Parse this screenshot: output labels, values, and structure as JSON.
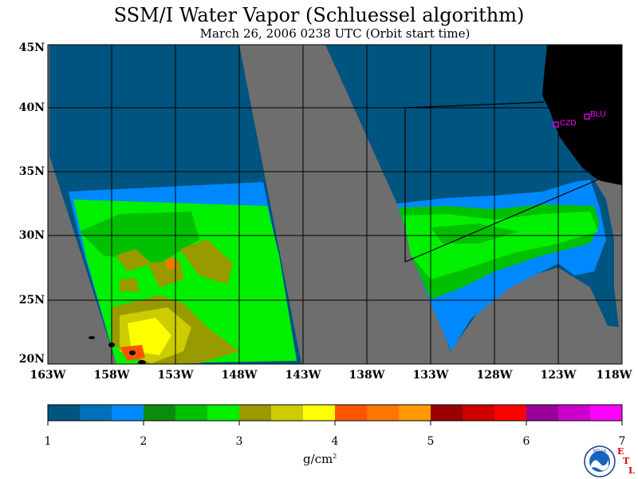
{
  "title": "SSM/I Water Vapor (Schluessel algorithm)",
  "subtitle": "March 26, 2006   0238 UTC  (Orbit start time)",
  "map": {
    "lat_labels": [
      "45N",
      "40N",
      "35N",
      "30N",
      "25N",
      "20N"
    ],
    "lon_labels": [
      "163W",
      "158W",
      "153W",
      "148W",
      "143W",
      "138W",
      "133W",
      "128W",
      "123W",
      "118W"
    ],
    "stations": [
      {
        "name": "CZD"
      },
      {
        "name": "BLU"
      }
    ],
    "colors": {
      "no_data": "#6e6e6e",
      "land": "#000000",
      "station": "#ff00ff"
    }
  },
  "colorbar": {
    "ticks": [
      "1",
      "2",
      "3",
      "4",
      "5",
      "6",
      "7"
    ],
    "units_base": "g/cm",
    "units_exp": "2",
    "colors": [
      "#005480",
      "#0070b8",
      "#0088ff",
      "#0c8c0c",
      "#00c000",
      "#00f000",
      "#999900",
      "#cccc00",
      "#ffff00",
      "#ff5500",
      "#ff7700",
      "#ff9900",
      "#990000",
      "#cc0000",
      "#ff0000",
      "#990099",
      "#cc00cc",
      "#ff00ff"
    ]
  },
  "logos": {
    "noaa_text": "NOAA",
    "etl_e": "E",
    "etl_t": "T",
    "etl_l": "L"
  }
}
